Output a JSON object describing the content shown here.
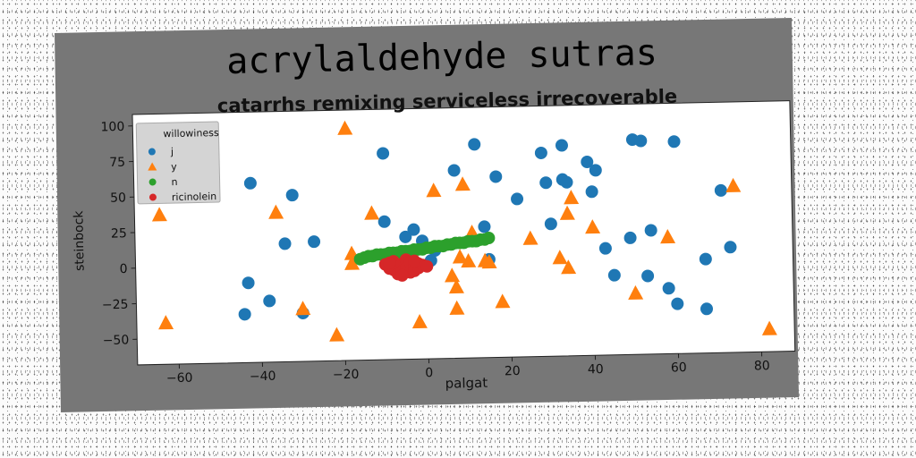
{
  "chart_data": {
    "type": "scatter",
    "title": "acrylaldehyde sutras",
    "subtitle": "catarrhs remixing serviceless irrecoverable",
    "xlabel": "palgat",
    "ylabel": "steinbock",
    "xlim": [
      -70,
      88
    ],
    "ylim": [
      -68,
      108
    ],
    "xticks": [
      -60,
      -40,
      -20,
      0,
      20,
      40,
      60,
      80
    ],
    "yticks": [
      -50,
      -25,
      0,
      25,
      50,
      75,
      100
    ],
    "grid": false,
    "legend": {
      "title": "willowiness",
      "position": "top-left"
    },
    "series": [
      {
        "name": "j",
        "marker": "circle",
        "color": "#1f77b4",
        "points": [
          [
            -42,
            58
          ],
          [
            -43,
            -12
          ],
          [
            -44,
            -34
          ],
          [
            -38,
            -25
          ],
          [
            -32,
            49
          ],
          [
            -34,
            15
          ],
          [
            -30,
            -34
          ],
          [
            -27,
            16
          ],
          [
            -10,
            77
          ],
          [
            -10,
            29
          ],
          [
            -3,
            23
          ],
          [
            -1,
            15
          ],
          [
            1,
            1
          ],
          [
            7,
            64
          ],
          [
            12,
            82
          ],
          [
            14,
            24
          ],
          [
            17,
            59
          ],
          [
            22,
            43
          ],
          [
            28,
            75
          ],
          [
            29,
            54
          ],
          [
            30,
            25
          ],
          [
            33,
            80
          ],
          [
            33,
            56
          ],
          [
            34,
            54
          ],
          [
            39,
            68
          ],
          [
            40,
            47
          ],
          [
            41,
            62
          ],
          [
            43,
            7
          ],
          [
            45,
            -12
          ],
          [
            49,
            14
          ],
          [
            50,
            83
          ],
          [
            52,
            82
          ],
          [
            53,
            -13
          ],
          [
            54,
            19
          ],
          [
            58,
            -22
          ],
          [
            60,
            81
          ],
          [
            60,
            -33
          ],
          [
            67,
            -2
          ],
          [
            67,
            -37
          ],
          [
            71,
            46
          ],
          [
            73,
            6
          ],
          [
            2,
            8
          ],
          [
            15,
            1
          ],
          [
            -5,
            18
          ]
        ]
      },
      {
        "name": "y",
        "marker": "triangle",
        "color": "#ff7f0e",
        "points": [
          [
            -64,
            37
          ],
          [
            -63,
            -39
          ],
          [
            -36,
            37
          ],
          [
            -30,
            -31
          ],
          [
            -22,
            -50
          ],
          [
            -19,
            95
          ],
          [
            -18,
            7
          ],
          [
            -18,
            0
          ],
          [
            -13,
            35
          ],
          [
            -8,
            5
          ],
          [
            -2,
            -42
          ],
          [
            2,
            50
          ],
          [
            6,
            -10
          ],
          [
            7,
            -18
          ],
          [
            7,
            -33
          ],
          [
            8,
            3
          ],
          [
            9,
            54
          ],
          [
            10,
            0
          ],
          [
            11,
            20
          ],
          [
            14,
            0
          ],
          [
            15,
            -1
          ],
          [
            18,
            -29
          ],
          [
            25,
            15
          ],
          [
            32,
            1
          ],
          [
            34,
            -6
          ],
          [
            34,
            32
          ],
          [
            35,
            43
          ],
          [
            40,
            22
          ],
          [
            50,
            -25
          ],
          [
            58,
            14
          ],
          [
            74,
            49
          ],
          [
            82,
            -52
          ]
        ]
      },
      {
        "name": "n",
        "marker": "circle",
        "color": "#2ca02c",
        "points": [
          [
            -16,
            3
          ],
          [
            -15,
            4
          ],
          [
            -14,
            5
          ],
          [
            -13,
            5
          ],
          [
            -12,
            6
          ],
          [
            -11,
            6
          ],
          [
            -10,
            6
          ],
          [
            -9,
            7
          ],
          [
            -8,
            7
          ],
          [
            -7,
            7
          ],
          [
            -6,
            8
          ],
          [
            -5,
            8
          ],
          [
            -4,
            8
          ],
          [
            -3,
            9
          ],
          [
            -2,
            9
          ],
          [
            -1,
            9
          ],
          [
            0,
            10
          ],
          [
            1,
            10
          ],
          [
            2,
            11
          ],
          [
            3,
            11
          ],
          [
            4,
            11
          ],
          [
            5,
            12
          ],
          [
            6,
            12
          ],
          [
            7,
            13
          ],
          [
            8,
            13
          ],
          [
            9,
            13
          ],
          [
            10,
            14
          ],
          [
            11,
            14
          ],
          [
            12,
            14
          ],
          [
            13,
            15
          ],
          [
            14,
            15
          ],
          [
            15,
            16
          ]
        ]
      },
      {
        "name": "ricinolein",
        "marker": "circle",
        "color": "#d62728",
        "points": [
          [
            -10,
            -1
          ],
          [
            -9,
            -4
          ],
          [
            -8,
            1
          ],
          [
            -8,
            -5
          ],
          [
            -7,
            -3
          ],
          [
            -7,
            -8
          ],
          [
            -6,
            -1
          ],
          [
            -6,
            -6
          ],
          [
            -5,
            2
          ],
          [
            -5,
            -4
          ],
          [
            -4,
            -7
          ],
          [
            -4,
            0
          ],
          [
            -3,
            -3
          ],
          [
            -3,
            -6
          ],
          [
            -2,
            -1
          ],
          [
            -2,
            -4
          ],
          [
            -1,
            -2
          ],
          [
            0,
            -3
          ],
          [
            -6,
            -9
          ],
          [
            -9,
            0
          ],
          [
            -3,
            1
          ]
        ]
      }
    ]
  }
}
